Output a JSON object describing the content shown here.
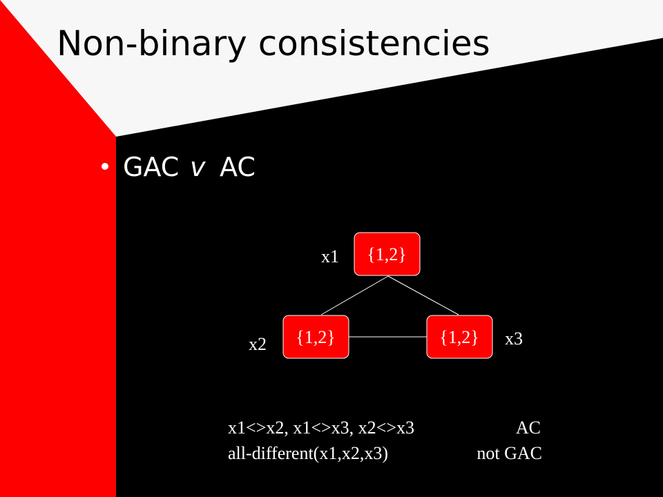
{
  "title": "Non-binary consistencies",
  "bullet": {
    "left": "GAC",
    "symbol": "v",
    "right": "AC"
  },
  "nodes": [
    {
      "name": "x1",
      "domain": "{1,2}"
    },
    {
      "name": "x2",
      "domain": "{1,2}"
    },
    {
      "name": "x3",
      "domain": "{1,2}"
    }
  ],
  "notes": [
    {
      "constraint": "x1<>x2, x1<>x3, x2<>x3",
      "result": "AC"
    },
    {
      "constraint": "all-different(x1,x2,x3)",
      "result": "not GAC"
    }
  ]
}
